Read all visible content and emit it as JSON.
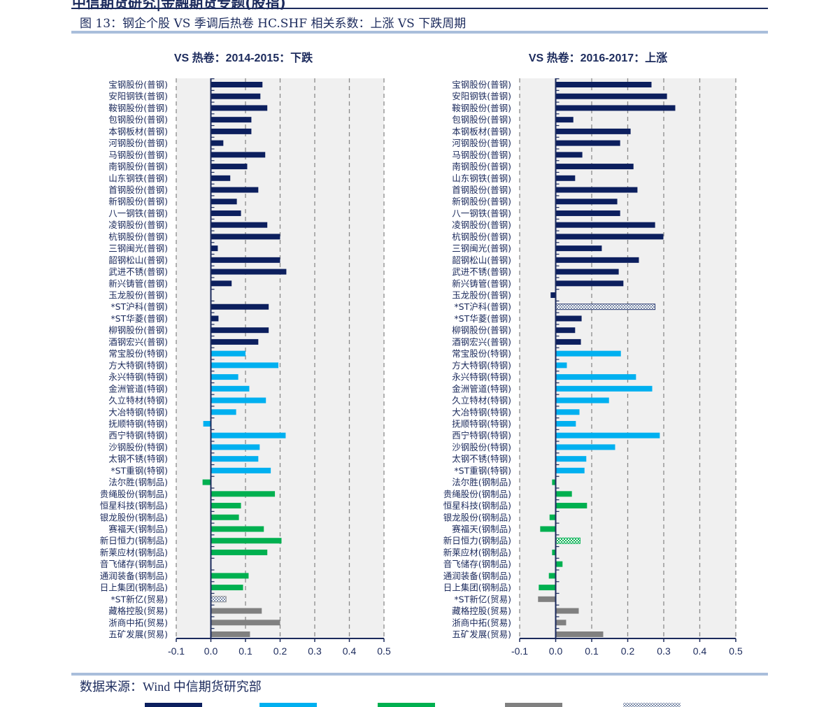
{
  "header": {
    "report_title": "中信期货研究|金融期货专题(股指)"
  },
  "figure_title": "图 13：钢企个股 VS  季调后热卷 HC.SHF 相关系数：上涨  VS 下跌周期",
  "source": "数据来源：Wind    中信期货研究部",
  "colors": {
    "普钢": "#0c1f5e",
    "特钢": "#00b0f0",
    "钢制品": "#00b050",
    "贸易": "#808080",
    "axis": "#1b2a5c",
    "plot_bg": "#f0f0f0"
  },
  "legend": {
    "swatches": [
      "#0c1f5e",
      "#00b0f0",
      "#00b050",
      "#808080",
      "hatched"
    ],
    "placement": "bottom"
  },
  "chart_data": [
    {
      "type": "bar",
      "orientation": "horizontal",
      "title": "VS 热卷：2014-2015：下跌",
      "xlim": [
        -0.1,
        0.5
      ],
      "xticks": [
        "-0.1",
        "0.0",
        "0.1",
        "0.2",
        "0.3",
        "0.4",
        "0.5"
      ],
      "grid": "vertical dashed",
      "categories": [
        "宝钢股份(普钢)",
        "安阳钢铁(普钢)",
        "鞍钢股份(普钢)",
        "包钢股份(普钢)",
        "本钢板材(普钢)",
        "河钢股份(普钢)",
        "马钢股份(普钢)",
        "南钢股份(普钢)",
        "山东钢铁(普钢)",
        "首钢股份(普钢)",
        "新钢股份(普钢)",
        "八一钢铁(普钢)",
        "凌钢股份(普钢)",
        "杭钢股份(普钢)",
        "三钢闽光(普钢)",
        "韶钢松山(普钢)",
        "武进不锈(普钢)",
        "新兴铸管(普钢)",
        "玉龙股份(普钢)",
        "*ST沪科(普钢)",
        "*ST华菱(普钢)",
        "柳钢股份(普钢)",
        "酒钢宏兴(普钢)",
        "常宝股份(特钢)",
        "方大特钢(特钢)",
        "永兴特钢(特钢)",
        "金洲管道(特钢)",
        "久立特材(特钢)",
        "大冶特钢(特钢)",
        "抚顺特钢(特钢)",
        "西宁特钢(特钢)",
        "沙钢股份(特钢)",
        "太钢不锈(特钢)",
        "*ST重钢(特钢)",
        "法尔胜(钢制品)",
        "贵绳股份(钢制品)",
        "恒星科技(钢制品)",
        "银龙股份(钢制品)",
        "赛福天(钢制品)",
        "新日恒力(钢制品)",
        "新莱应材(钢制品)",
        "音飞储存(钢制品)",
        "通润装备(钢制品)",
        "日上集团(钢制品)",
        "*ST新亿(贸易)",
        "藏格控股(贸易)",
        "浙商中拓(贸易)",
        "五矿发展(贸易)"
      ],
      "values": [
        0.149,
        0.143,
        0.163,
        0.117,
        0.117,
        0.036,
        0.157,
        0.105,
        0.056,
        0.137,
        0.075,
        0.087,
        0.163,
        0.2,
        0.02,
        0.2,
        0.218,
        0.06,
        0.0,
        0.167,
        0.022,
        0.167,
        0.137,
        0.1,
        0.195,
        0.079,
        0.111,
        0.159,
        0.073,
        -0.022,
        0.216,
        0.141,
        0.137,
        0.173,
        -0.024,
        0.185,
        0.087,
        0.081,
        0.153,
        0.204,
        0.163,
        0.0,
        0.109,
        0.093,
        0.044,
        0.147,
        0.2,
        0.113
      ],
      "hatched": [
        "*ST新亿(贸易)"
      ]
    },
    {
      "type": "bar",
      "orientation": "horizontal",
      "title": "VS 热卷：2016-2017：上涨",
      "xlim": [
        -0.1,
        0.5
      ],
      "xticks": [
        "-0.1",
        "0.0",
        "0.1",
        "0.2",
        "0.3",
        "0.4",
        "0.5"
      ],
      "grid": "vertical dashed",
      "categories": [
        "宝钢股份(普钢)",
        "安阳钢铁(普钢)",
        "鞍钢股份(普钢)",
        "包钢股份(普钢)",
        "本钢板材(普钢)",
        "河钢股份(普钢)",
        "马钢股份(普钢)",
        "南钢股份(普钢)",
        "山东钢铁(普钢)",
        "首钢股份(普钢)",
        "新钢股份(普钢)",
        "八一钢铁(普钢)",
        "凌钢股份(普钢)",
        "杭钢股份(普钢)",
        "三钢闽光(普钢)",
        "韶钢松山(普钢)",
        "武进不锈(普钢)",
        "新兴铸管(普钢)",
        "玉龙股份(普钢)",
        "*ST沪科(普钢)",
        "*ST华菱(普钢)",
        "柳钢股份(普钢)",
        "酒钢宏兴(普钢)",
        "常宝股份(特钢)",
        "方大特钢(特钢)",
        "永兴特钢(特钢)",
        "金洲管道(特钢)",
        "久立特材(特钢)",
        "大冶特钢(特钢)",
        "抚顺特钢(特钢)",
        "西宁特钢(特钢)",
        "沙钢股份(特钢)",
        "太钢不锈(特钢)",
        "*ST重钢(特钢)",
        "法尔胜(钢制品)",
        "贵绳股份(钢制品)",
        "恒星科技(钢制品)",
        "银龙股份(钢制品)",
        "赛福天(钢制品)",
        "新日恒力(钢制品)",
        "新莱应材(钢制品)",
        "音飞储存(钢制品)",
        "通润装备(钢制品)",
        "日上集团(钢制品)",
        "*ST新亿(贸易)",
        "藏格控股(贸易)",
        "浙商中拓(贸易)",
        "五矿发展(贸易)"
      ],
      "values": [
        0.266,
        0.309,
        0.332,
        0.049,
        0.208,
        0.179,
        0.074,
        0.216,
        0.054,
        0.227,
        0.171,
        0.179,
        0.276,
        0.299,
        0.128,
        0.231,
        0.175,
        0.188,
        -0.014,
        0.276,
        0.072,
        0.054,
        0.07,
        0.181,
        0.031,
        0.223,
        0.268,
        0.148,
        0.066,
        0.056,
        0.289,
        0.165,
        0.085,
        0.08,
        -0.01,
        0.045,
        0.087,
        -0.017,
        -0.043,
        0.068,
        -0.01,
        0.019,
        -0.019,
        -0.047,
        -0.049,
        0.064,
        0.029,
        0.132
      ],
      "hatched": [
        "*ST沪科(普钢)",
        "新日恒力(钢制品)"
      ]
    }
  ]
}
